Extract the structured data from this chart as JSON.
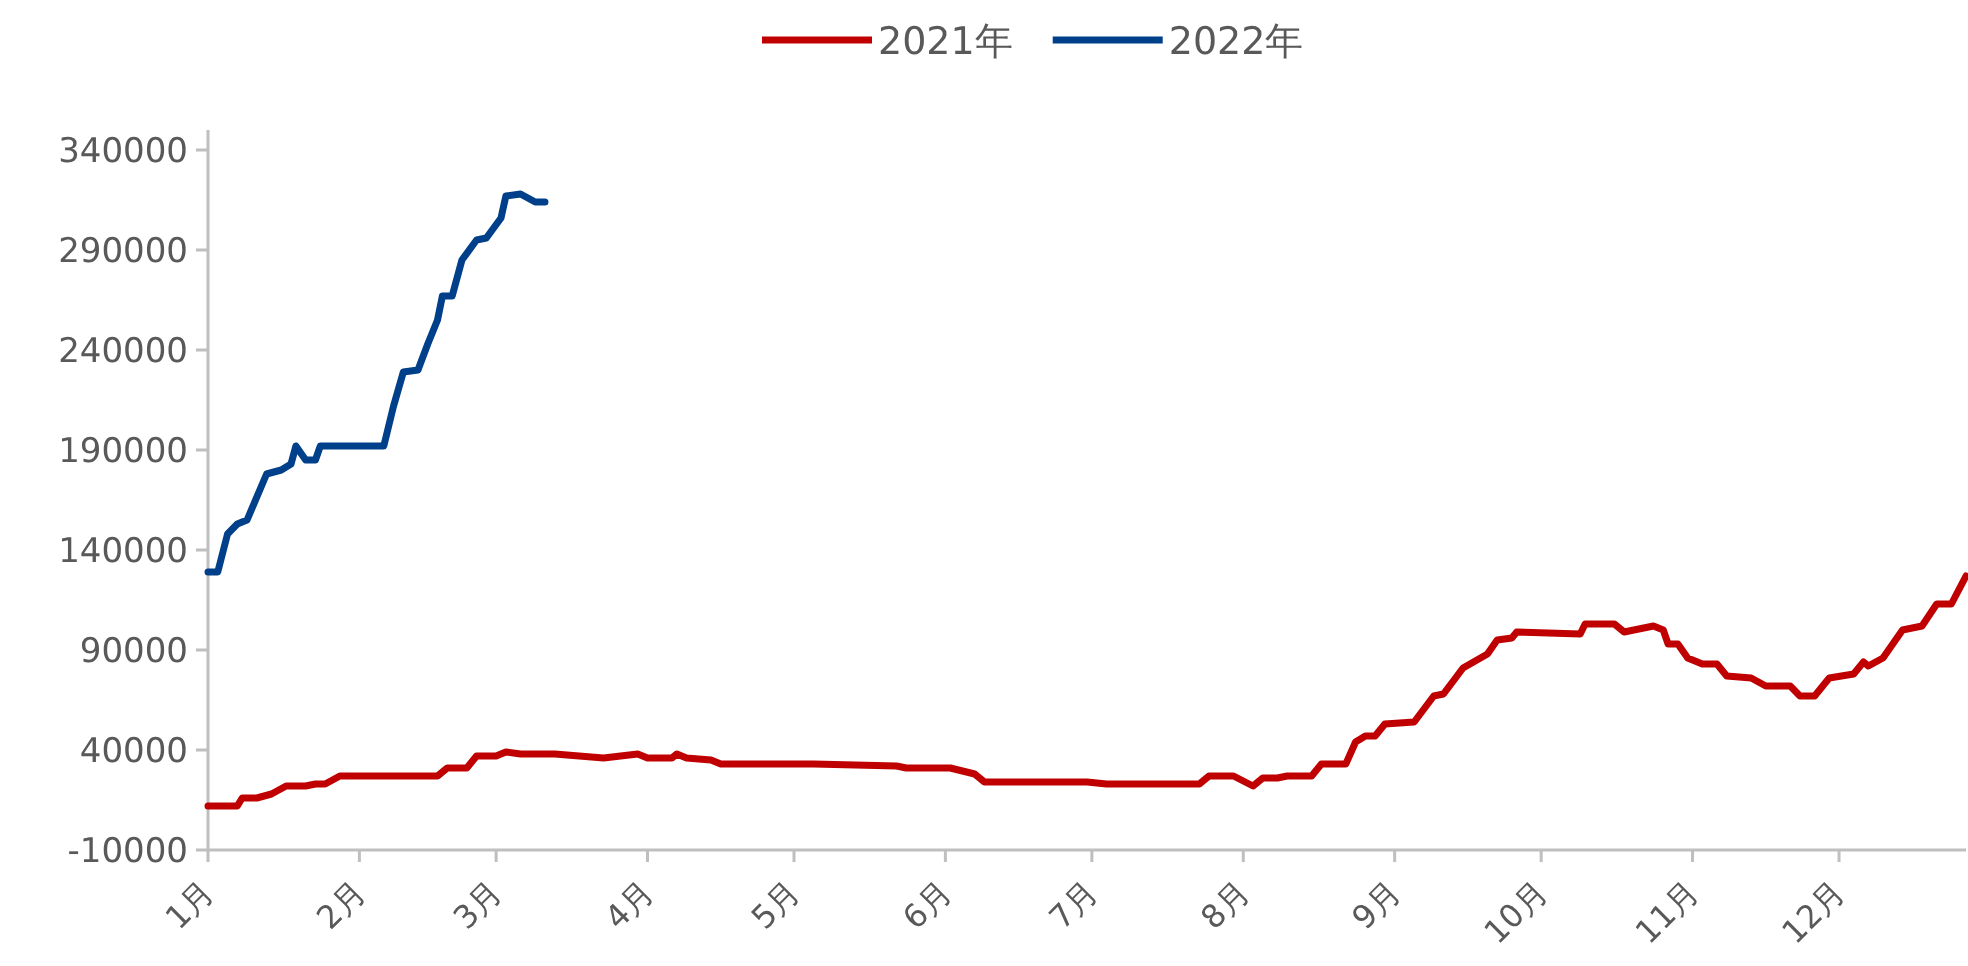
{
  "chart_data": {
    "type": "line",
    "legend": "top",
    "marker": "none",
    "line_style": "solid",
    "grid": false,
    "xlim": [
      "--01-01",
      "--12-27"
    ],
    "ylim": [
      -10000,
      350000
    ],
    "yticks": [
      -10000,
      40000,
      90000,
      140000,
      190000,
      240000,
      290000,
      340000
    ],
    "xticks": [
      {
        "value": "--01-01",
        "label": "1月"
      },
      {
        "value": "--02-01",
        "label": "2月"
      },
      {
        "value": "--03-01",
        "label": "3月"
      },
      {
        "value": "--04-01",
        "label": "4月"
      },
      {
        "value": "--05-01",
        "label": "5月"
      },
      {
        "value": "--06-01",
        "label": "6月"
      },
      {
        "value": "--07-01",
        "label": "7月"
      },
      {
        "value": "--08-01",
        "label": "8月"
      },
      {
        "value": "--09-01",
        "label": "9月"
      },
      {
        "value": "--10-01",
        "label": "10月"
      },
      {
        "value": "--11-01",
        "label": "11月"
      },
      {
        "value": "--12-01",
        "label": "12月"
      }
    ],
    "series": [
      {
        "name": "2021年",
        "color": "#c00000",
        "x": [
          "--01-01",
          "--01-07",
          "--01-08",
          "--01-11",
          "--01-14",
          "--01-17",
          "--01-21",
          "--01-23",
          "--01-25",
          "--01-28",
          "--02-17",
          "--02-19",
          "--02-23",
          "--02-25",
          "--03-01",
          "--03-03",
          "--03-06",
          "--03-13",
          "--03-23",
          "--03-30",
          "--04-01",
          "--04-06",
          "--04-07",
          "--04-09",
          "--04-14",
          "--04-16",
          "--05-05",
          "--05-22",
          "--05-24",
          "--06-02",
          "--06-07",
          "--06-09",
          "--06-30",
          "--07-04",
          "--07-23",
          "--07-25",
          "--07-30",
          "--08-03",
          "--08-05",
          "--08-08",
          "--08-10",
          "--08-15",
          "--08-17",
          "--08-22",
          "--08-24",
          "--08-26",
          "--08-28",
          "--08-30",
          "--09-05",
          "--09-09",
          "--09-11",
          "--09-15",
          "--09-20",
          "--09-22",
          "--09-25",
          "--09-26",
          "--10-09",
          "--10-10",
          "--10-16",
          "--10-18",
          "--10-24",
          "--10-26",
          "--10-27",
          "--10-29",
          "--10-31",
          "--11-03",
          "--11-06",
          "--11-08",
          "--11-13",
          "--11-16",
          "--11-21",
          "--11-23",
          "--11-26",
          "--11-29",
          "--12-04",
          "--12-06",
          "--12-07",
          "--12-10",
          "--12-14",
          "--12-18",
          "--12-21",
          "--12-24",
          "--12-27"
        ],
        "values": [
          12000,
          12000,
          16000,
          16000,
          18000,
          22000,
          22000,
          23000,
          23000,
          27000,
          27000,
          31000,
          31000,
          37000,
          37000,
          39000,
          38000,
          38000,
          36000,
          38000,
          36000,
          36000,
          38000,
          36000,
          35000,
          33000,
          33000,
          32000,
          31000,
          31000,
          28000,
          24000,
          24000,
          23000,
          23000,
          27000,
          27000,
          22000,
          26000,
          26000,
          27000,
          27000,
          33000,
          33000,
          44000,
          47000,
          47000,
          53000,
          54000,
          67000,
          68000,
          81000,
          88000,
          95000,
          96000,
          99000,
          98000,
          103000,
          103000,
          99000,
          102000,
          100000,
          93000,
          93000,
          86000,
          83000,
          83000,
          77000,
          76000,
          72000,
          72000,
          67000,
          67000,
          76000,
          78000,
          84000,
          82000,
          86000,
          100000,
          102000,
          113000,
          113000,
          127000
        ]
      },
      {
        "name": "2022年",
        "color": "#003f8a",
        "x": [
          "--01-01",
          "--01-03",
          "--01-05",
          "--01-07",
          "--01-09",
          "--01-13",
          "--01-16",
          "--01-18",
          "--01-19",
          "--01-21",
          "--01-23",
          "--01-24",
          "--02-06",
          "--02-08",
          "--02-10",
          "--02-13",
          "--02-15",
          "--02-17",
          "--02-18",
          "--02-20",
          "--02-22",
          "--02-25",
          "--02-27",
          "--03-02",
          "--03-03",
          "--03-06",
          "--03-09",
          "--03-11"
        ],
        "values": [
          129000,
          129000,
          148000,
          153000,
          155000,
          178000,
          180000,
          183000,
          192000,
          185000,
          185000,
          192000,
          192000,
          212000,
          229000,
          230000,
          243000,
          255000,
          267000,
          267000,
          285000,
          295000,
          296000,
          306000,
          317000,
          318000,
          314000,
          314000
        ]
      }
    ]
  }
}
